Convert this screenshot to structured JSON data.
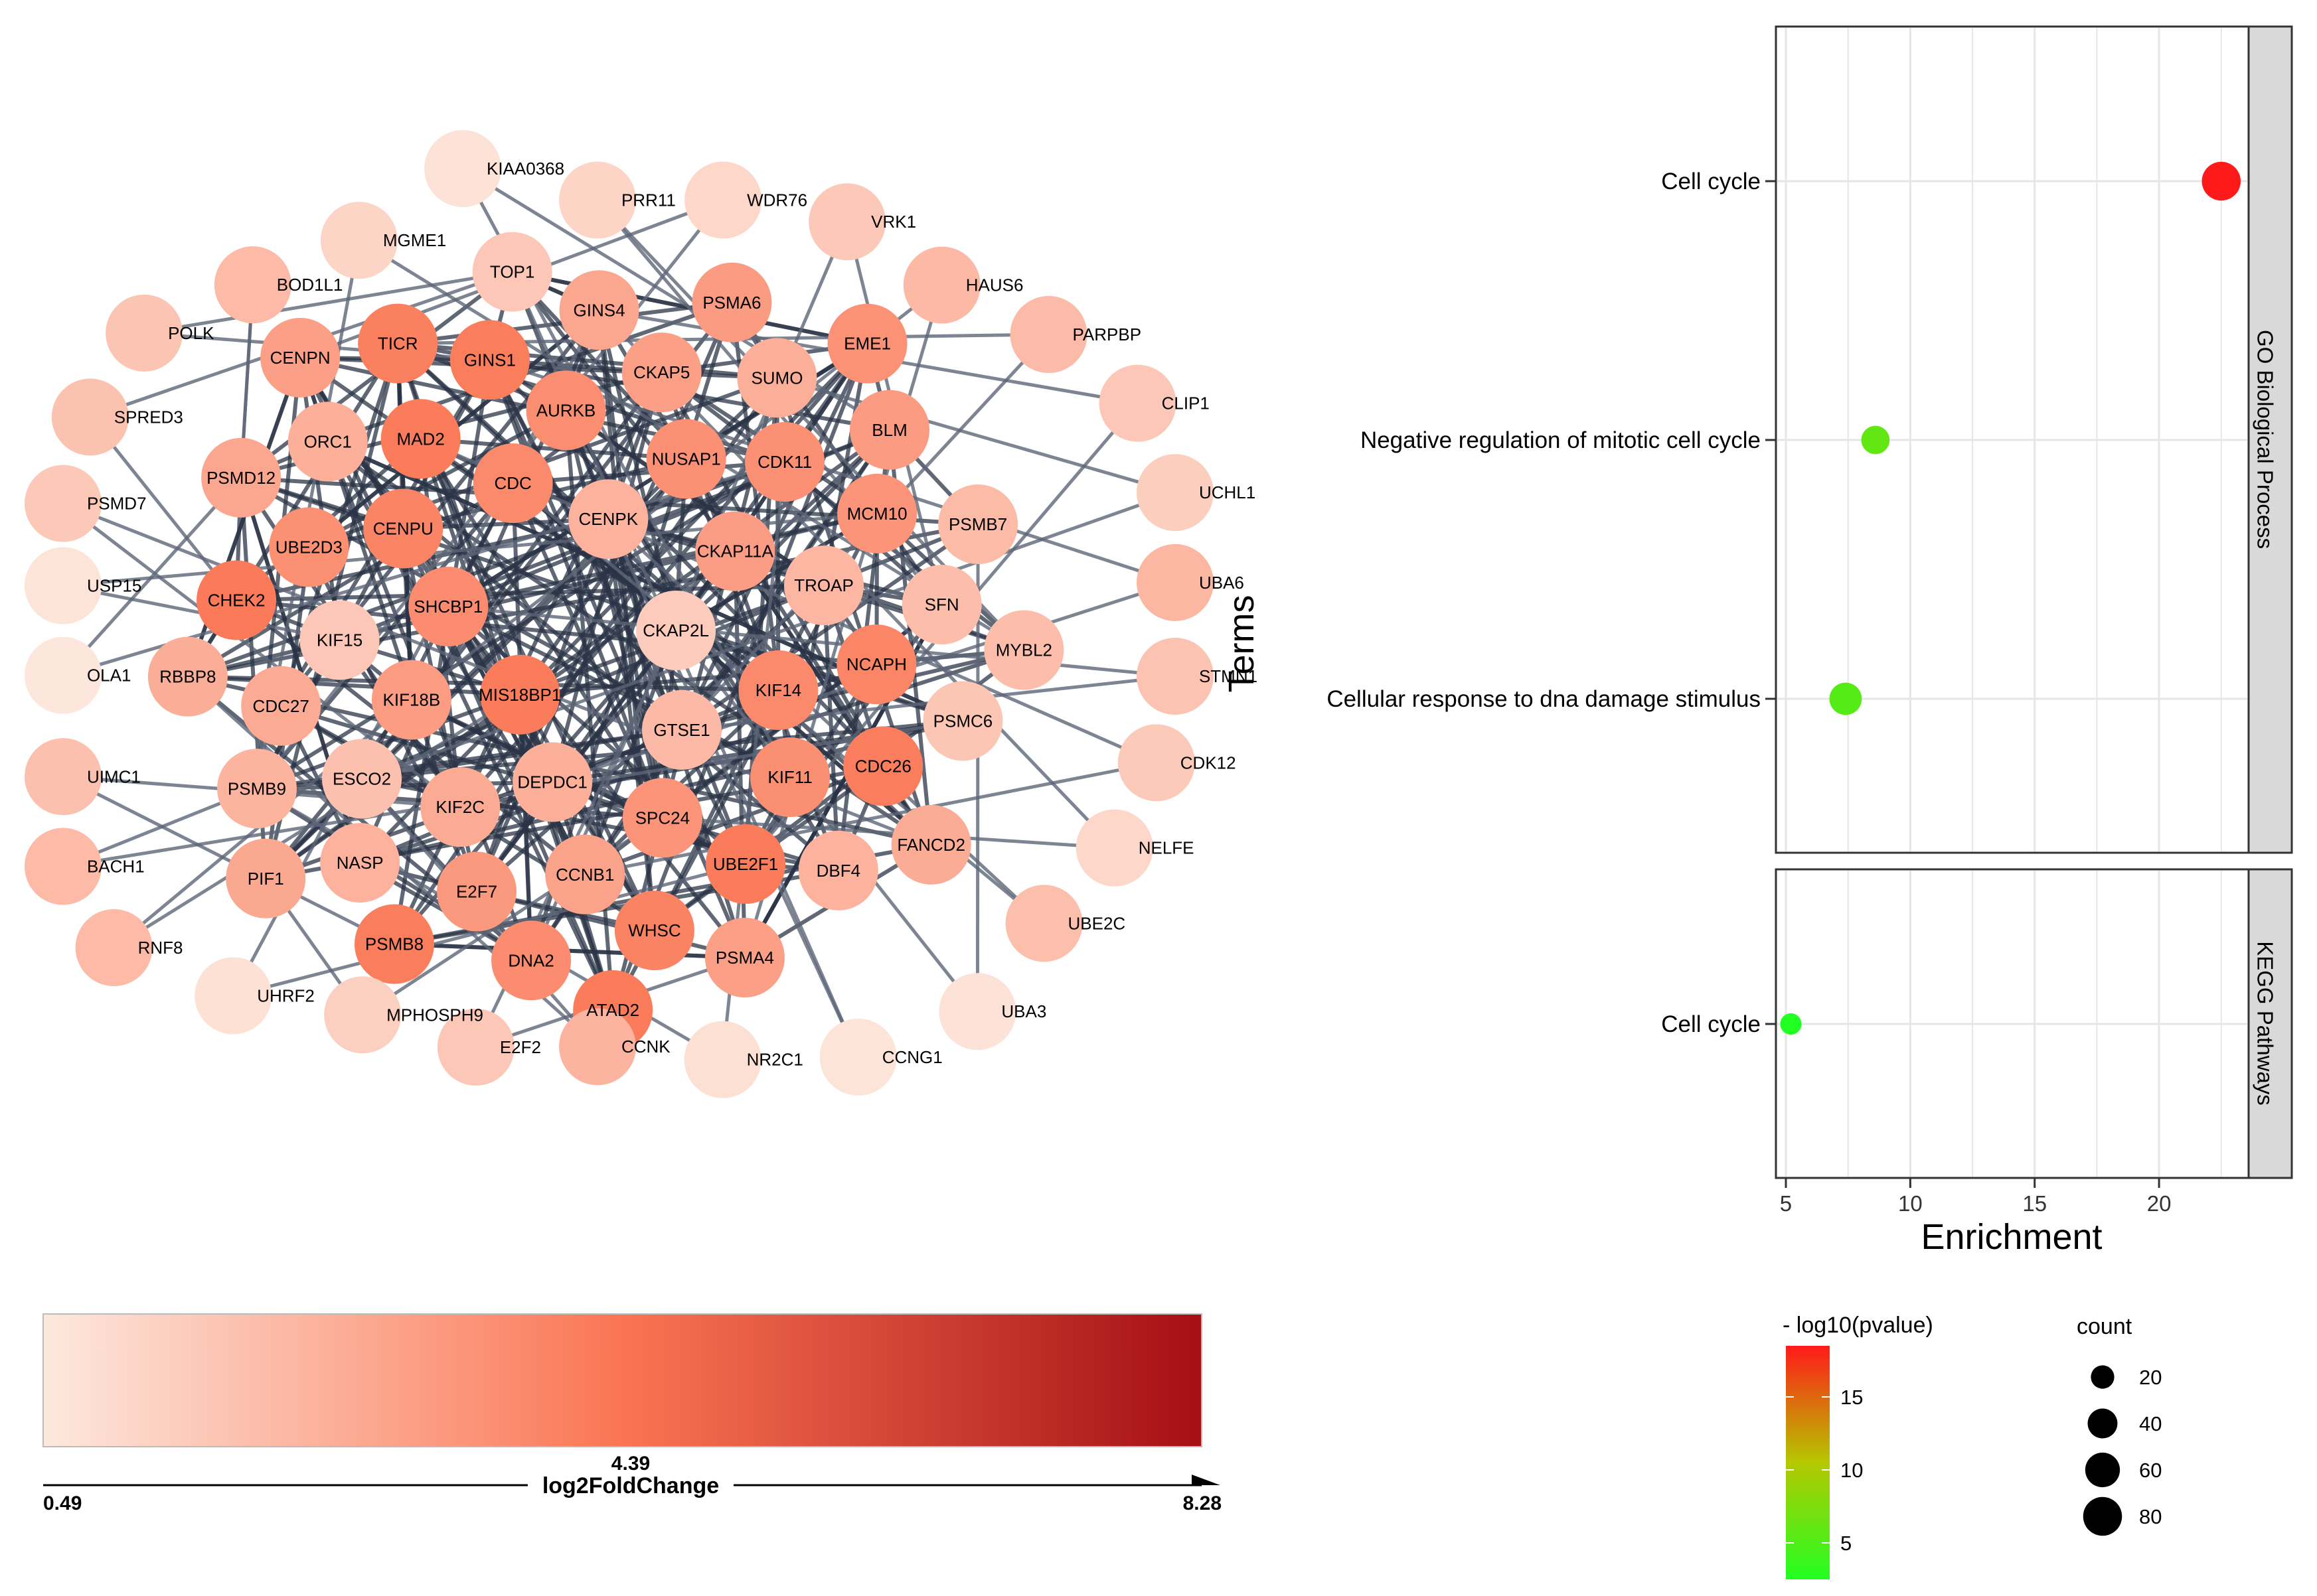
{
  "network": {
    "center_nodes": [
      "CKAP2L",
      "MIS18BP1",
      "CENPK",
      "GTSE1",
      "SHCBP1",
      "CKAP11A",
      "DEPDC1",
      "CDC",
      "KIF14",
      "KIF18B",
      "NUSAP1",
      "SPC24",
      "CENPU",
      "TROAP",
      "KIF2C",
      "AURKB",
      "KIF11",
      "KIF15",
      "CDK11",
      "CCNB1",
      "MAD2",
      "NCAPH",
      "ESCO2",
      "CKAP5",
      "UBE2F1",
      "UBE2D3",
      "MCM10",
      "E2F7",
      "GINS1",
      "CDC26",
      "CDC27",
      "SUMO",
      "WHSC",
      "ORC1",
      "SFN",
      "NASP",
      "GINS4",
      "DBF4",
      "CHEK2",
      "BLM",
      "DNA2",
      "TICR",
      "PSMC6",
      "PSMB9",
      "PSMA6",
      "PSMA4",
      "PSMD12",
      "PSMB7",
      "PSMB8",
      "TOP1",
      "FANCD2",
      "RBBP8",
      "EME1",
      "ATAD2",
      "CENPN",
      "MYBL2",
      "PIF1"
    ],
    "outer_nodes": [
      "PRR11",
      "WDR76",
      "VRK1",
      "HAUS6",
      "PARPBP",
      "CLIP1",
      "UCHL1",
      "UBA6",
      "STMN1",
      "CDK12",
      "NELFE",
      "UBE2C",
      "UBA3",
      "CCNG1",
      "NR2C1",
      "CCNK",
      "E2F2",
      "MPHOSPH9",
      "UHRF2",
      "RNF8",
      "BACH1",
      "UIMC1",
      "OLA1",
      "USP15",
      "PSMD7",
      "SPRED3",
      "POLK",
      "BOD1L1",
      "MGME1",
      "KIAA0368"
    ],
    "colorbar": {
      "label": "log2FoldChange",
      "min": "0.49",
      "mid": "4.39",
      "max": "8.28",
      "color_low": "#fde8de",
      "color_mid": "#fa7553",
      "color_high": "#a50f15"
    }
  },
  "chart_data": {
    "type": "scatter",
    "xlabel": "Enrichment",
    "ylabel": "Terms",
    "xlim": [
      4.6,
      23.6
    ],
    "xticks": [
      "5",
      "10",
      "15",
      "20"
    ],
    "facets": [
      {
        "name": "GO Biological Process",
        "points": [
          {
            "term": "Cell cycle",
            "enrichment": 22.5,
            "neg_log10_pvalue": 18.5,
            "count": 80
          },
          {
            "term": "Negative regulation of mitotic cell cycle",
            "enrichment": 8.6,
            "neg_log10_pvalue": 6.0,
            "count": 35
          },
          {
            "term": "Cellular response to dna damage stimulus",
            "enrichment": 7.4,
            "neg_log10_pvalue": 5.3,
            "count": 50
          }
        ]
      },
      {
        "name": "KEGG Pathways",
        "points": [
          {
            "term": "Cell cycle",
            "enrichment": 5.2,
            "neg_log10_pvalue": 2.5,
            "count": 15
          }
        ]
      }
    ],
    "legend_color": {
      "title": "- log10(pvalue)",
      "ticks": [
        "5",
        "10",
        "15"
      ],
      "min": 2.5,
      "max": 18.5,
      "color_low": "#22ff22",
      "color_mid": "#b4c800",
      "color_high": "#ff1a1a"
    },
    "legend_size": {
      "title": "count",
      "values": [
        "20",
        "40",
        "60",
        "80"
      ]
    }
  }
}
